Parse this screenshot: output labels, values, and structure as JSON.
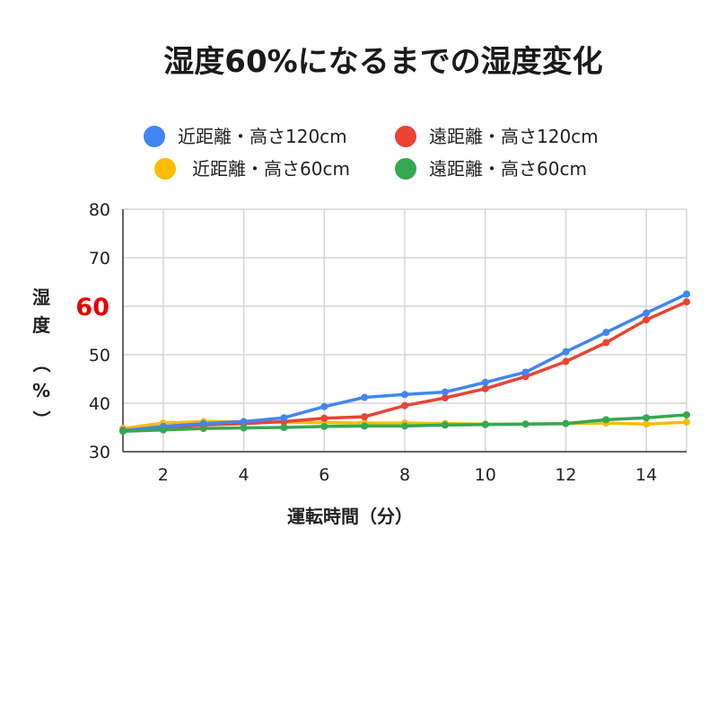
{
  "chart_data": {
    "type": "line",
    "title": "湿度60%になるまでの湿度変化",
    "xlabel": "運転時間（分）",
    "ylabel_chars": [
      "湿",
      "度",
      "（",
      "%",
      "）"
    ],
    "xlim": [
      1,
      15
    ],
    "ylim": [
      30,
      80
    ],
    "x_ticks": [
      2,
      4,
      6,
      8,
      10,
      12,
      14
    ],
    "y_ticks": [
      30,
      40,
      50,
      60,
      70,
      80
    ],
    "y_highlight_tick": 60,
    "y_highlight_color": "#e60000",
    "grid": true,
    "legend_position": "top",
    "x": [
      1,
      2,
      3,
      4,
      5,
      6,
      7,
      8,
      9,
      10,
      11,
      12,
      13,
      14,
      15
    ],
    "series": [
      {
        "name": "近距離・高さ120cm",
        "color": "#4285f4",
        "values": [
          34.3,
          35.2,
          35.8,
          36.2,
          37.0,
          39.3,
          41.2,
          41.8,
          42.3,
          44.3,
          46.4,
          50.6,
          54.6,
          58.6,
          62.5
        ]
      },
      {
        "name": "遠距離・高さ120cm",
        "color": "#ea4335",
        "values": [
          34.4,
          35.0,
          35.5,
          35.8,
          36.2,
          36.9,
          37.2,
          39.5,
          41.1,
          43.0,
          45.5,
          48.6,
          52.5,
          57.2,
          60.9
        ]
      },
      {
        "name": "近距離・高さ60cm",
        "color": "#fbbc04",
        "values": [
          34.8,
          35.9,
          36.2,
          36.2,
          36.1,
          36.0,
          35.9,
          35.9,
          35.8,
          35.7,
          35.7,
          35.8,
          35.9,
          35.7,
          36.1
        ]
      },
      {
        "name": "遠距離・高さ60cm",
        "color": "#34a853",
        "values": [
          34.2,
          34.5,
          34.8,
          34.9,
          35.0,
          35.2,
          35.3,
          35.3,
          35.5,
          35.6,
          35.7,
          35.8,
          36.6,
          37.0,
          37.6
        ]
      }
    ]
  }
}
